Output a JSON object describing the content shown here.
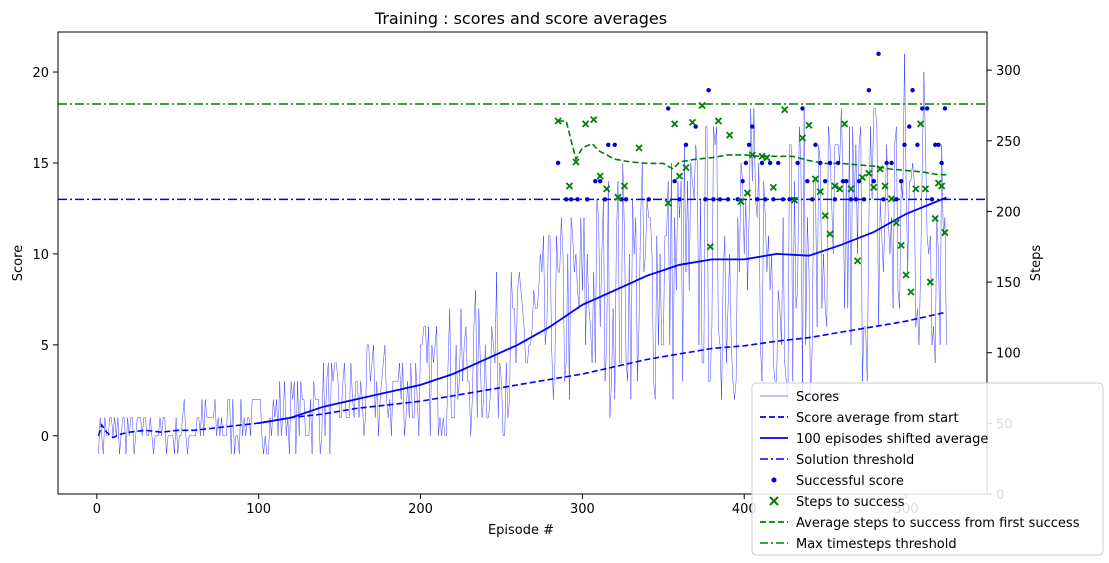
{
  "chart_data": {
    "type": "line",
    "title": "Training : scores and score averages",
    "xlabel": "Episode #",
    "ylabel": "Score",
    "y2label": "Steps",
    "xlim": [
      -24,
      550
    ],
    "ylim": [
      -3.2,
      22.2
    ],
    "y2lim": [
      0,
      327
    ],
    "xticks": [
      0,
      100,
      200,
      300,
      400,
      500
    ],
    "yticks": [
      0,
      5,
      10,
      15,
      20
    ],
    "y2ticks": [
      0,
      50,
      100,
      150,
      200,
      250,
      300
    ],
    "n_episodes": 525,
    "series": [
      {
        "name": "Scores",
        "color": "#0000ff",
        "style": "thin-line",
        "description_points": {
          "x": [
            1,
            50,
            100,
            150,
            200,
            250,
            280,
            300,
            330,
            360,
            380,
            400,
            430,
            460,
            480,
            500,
            525
          ],
          "y": [
            0,
            0.3,
            0.8,
            1.8,
            2.8,
            4.5,
            6,
            7.5,
            8.5,
            9.3,
            9.7,
            10,
            10,
            10.3,
            11.2,
            12.3,
            13.2
          ]
        }
      },
      {
        "name": "Score average from start",
        "color": "#0000ff",
        "style": "dashed",
        "x": [
          1,
          3,
          6,
          10,
          15,
          20,
          30,
          40,
          50,
          60,
          70,
          80,
          90,
          100,
          120,
          140,
          160,
          180,
          200,
          220,
          240,
          260,
          280,
          300,
          320,
          340,
          360,
          380,
          400,
          420,
          440,
          460,
          480,
          500,
          525
        ],
        "y": [
          0,
          0.6,
          0.2,
          -0.1,
          0.1,
          0.2,
          0.3,
          0.2,
          0.3,
          0.3,
          0.4,
          0.5,
          0.6,
          0.7,
          1.0,
          1.2,
          1.5,
          1.7,
          1.9,
          2.2,
          2.5,
          2.8,
          3.1,
          3.4,
          3.8,
          4.2,
          4.5,
          4.8,
          4.95,
          5.2,
          5.4,
          5.7,
          6.0,
          6.3,
          6.8
        ]
      },
      {
        "name": "100 episodes shifted average",
        "color": "#0000ff",
        "style": "solid",
        "x": [
          100,
          120,
          140,
          160,
          180,
          200,
          220,
          240,
          260,
          280,
          300,
          320,
          340,
          360,
          380,
          400,
          420,
          440,
          460,
          480,
          500,
          525
        ],
        "y": [
          0.7,
          1.0,
          1.6,
          2.0,
          2.4,
          2.8,
          3.4,
          4.2,
          5.0,
          6.0,
          7.2,
          8.0,
          8.8,
          9.4,
          9.7,
          9.7,
          10.0,
          9.9,
          10.5,
          11.2,
          12.2,
          13.1
        ]
      },
      {
        "name": "Solution threshold",
        "color": "#0000ff",
        "style": "dashdot",
        "y": 13
      },
      {
        "name": "Successful score",
        "color": "#0000cc",
        "style": "dots",
        "x": [
          285,
          290,
          293,
          297,
          303,
          308,
          311,
          314,
          316,
          320,
          324,
          327,
          341,
          353,
          357,
          360,
          364,
          370,
          376,
          378,
          381,
          385,
          390,
          396,
          399,
          401,
          403,
          405,
          408,
          411,
          413,
          416,
          418,
          421,
          424,
          428,
          431,
          433,
          436,
          439,
          442,
          444,
          447,
          450,
          453,
          456,
          458,
          461,
          463,
          466,
          469,
          471,
          474,
          477,
          480,
          483,
          486,
          488,
          491,
          494,
          497,
          499,
          502,
          504,
          507,
          510,
          513,
          516,
          518,
          520,
          522,
          524
        ],
        "y": [
          15,
          13,
          13,
          13,
          13,
          14,
          14,
          13,
          16,
          16,
          13,
          13,
          13,
          18,
          14,
          13,
          16,
          17,
          13,
          19,
          13,
          13,
          13,
          13,
          14,
          15,
          16,
          17,
          13,
          15,
          13,
          15,
          13,
          15,
          13,
          13,
          13,
          15,
          18,
          14,
          13,
          16,
          15,
          14,
          15,
          13,
          15,
          14,
          14,
          13,
          13,
          14,
          13,
          19,
          14,
          21,
          13,
          15,
          15,
          13,
          14,
          16,
          17,
          19,
          16,
          18,
          18,
          13,
          16,
          16,
          15,
          18
        ]
      },
      {
        "name": "Steps to success",
        "color": "#008000",
        "style": "x-markers",
        "x": [
          285,
          292,
          296,
          302,
          307,
          311,
          315,
          322,
          326,
          335,
          353,
          357,
          360,
          364,
          368,
          374,
          379,
          384,
          391,
          398,
          402,
          405,
          411,
          414,
          418,
          425,
          431,
          436,
          440,
          444,
          447,
          450,
          453,
          456,
          459,
          462,
          466,
          470,
          473,
          477,
          480,
          484,
          487,
          491,
          494,
          497,
          500,
          503,
          506,
          509,
          512,
          515,
          518,
          520,
          522,
          524
        ],
        "y": [
          264,
          218,
          235,
          262,
          265,
          225,
          216,
          210,
          218,
          245,
          206,
          262,
          225,
          231,
          263,
          275,
          175,
          264,
          254,
          207,
          213,
          240,
          239,
          238,
          217,
          272,
          208,
          252,
          261,
          223,
          214,
          197,
          184,
          218,
          216,
          262,
          216,
          165,
          224,
          227,
          217,
          230,
          218,
          209,
          192,
          176,
          155,
          143,
          216,
          262,
          216,
          150,
          195,
          220,
          218,
          185
        ]
      },
      {
        "name": "Average steps to success from first success",
        "color": "#008000",
        "style": "dashed",
        "x": [
          285,
          290,
          296,
          300,
          306,
          310,
          320,
          330,
          340,
          350,
          356,
          360,
          370,
          380,
          390,
          400,
          410,
          420,
          430,
          440,
          450,
          460,
          470,
          480,
          490,
          500,
          510,
          520,
          525
        ],
        "y": [
          264,
          264,
          237,
          245,
          248,
          243,
          237,
          235,
          234,
          234,
          230,
          235,
          237,
          238,
          240,
          240,
          239,
          239,
          239,
          236,
          234,
          234,
          233,
          232,
          230,
          229,
          228,
          226,
          226
        ]
      },
      {
        "name": "Max timesteps threshold",
        "color": "#008000",
        "style": "dashdot",
        "y2": 276
      }
    ],
    "legend": {
      "placement": "lower-right",
      "entries": [
        "Scores",
        "Score average from start",
        "100 episodes shifted average",
        "Solution threshold",
        "Successful score",
        "Steps to success",
        "Average steps to success from first success",
        "Max timesteps threshold"
      ]
    }
  }
}
